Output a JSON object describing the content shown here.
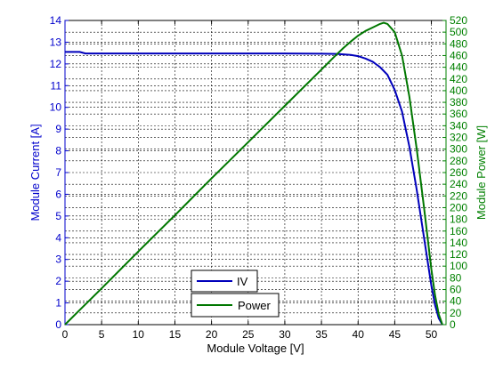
{
  "chart_data": {
    "type": "line",
    "xlabel": "Module Voltage [V]",
    "ylabel_left": "Module Current [A]",
    "ylabel_right": "Module Power [W]",
    "xlim": [
      0,
      52
    ],
    "ylim_left": [
      0,
      14
    ],
    "ylim_right": [
      0,
      520
    ],
    "x_ticks": [
      0,
      5,
      10,
      15,
      20,
      25,
      30,
      35,
      40,
      45,
      50
    ],
    "y_left_ticks": [
      0,
      1,
      2,
      3,
      4,
      5,
      6,
      7,
      8,
      9,
      10,
      11,
      12,
      13,
      14
    ],
    "y_right_ticks": [
      0,
      20,
      40,
      60,
      80,
      100,
      120,
      140,
      160,
      180,
      200,
      220,
      240,
      260,
      280,
      300,
      320,
      340,
      360,
      380,
      400,
      420,
      440,
      460,
      480,
      500,
      520
    ],
    "grid": true,
    "legend_position": "bottom-center",
    "colors": {
      "iv": "#0000bb",
      "power": "#007700",
      "left_axis": "#0000cc",
      "right_axis": "#008000"
    },
    "series": [
      {
        "name": "IV",
        "axis": "left",
        "x": [
          0,
          2,
          2.8,
          5,
          10,
          15,
          20,
          25,
          30,
          35,
          37,
          38,
          39,
          40,
          41,
          42,
          43,
          44,
          45,
          46,
          47,
          48,
          49,
          50,
          50.5,
          51,
          51.5
        ],
        "y": [
          12.55,
          12.55,
          12.48,
          12.48,
          12.48,
          12.48,
          12.48,
          12.48,
          12.48,
          12.47,
          12.46,
          12.44,
          12.41,
          12.36,
          12.25,
          12.1,
          11.85,
          11.5,
          10.8,
          9.8,
          8.2,
          6.2,
          4.0,
          1.8,
          0.9,
          0.3,
          0
        ]
      },
      {
        "name": "Power",
        "axis": "right",
        "x": [
          0,
          2,
          5,
          10,
          15,
          20,
          25,
          30,
          35,
          37,
          38,
          39,
          40,
          41,
          42,
          43,
          43.5,
          44,
          45,
          46,
          47,
          48,
          49,
          50,
          50.5,
          51,
          51.5
        ],
        "y": [
          0,
          25,
          62,
          125,
          187,
          250,
          312,
          374,
          436,
          461,
          473,
          484,
          494,
          502,
          508,
          514,
          516,
          514,
          500,
          460,
          390,
          300,
          200,
          95,
          50,
          18,
          0
        ]
      }
    ],
    "legend": {
      "iv_label": "IV",
      "power_label": "Power"
    }
  }
}
